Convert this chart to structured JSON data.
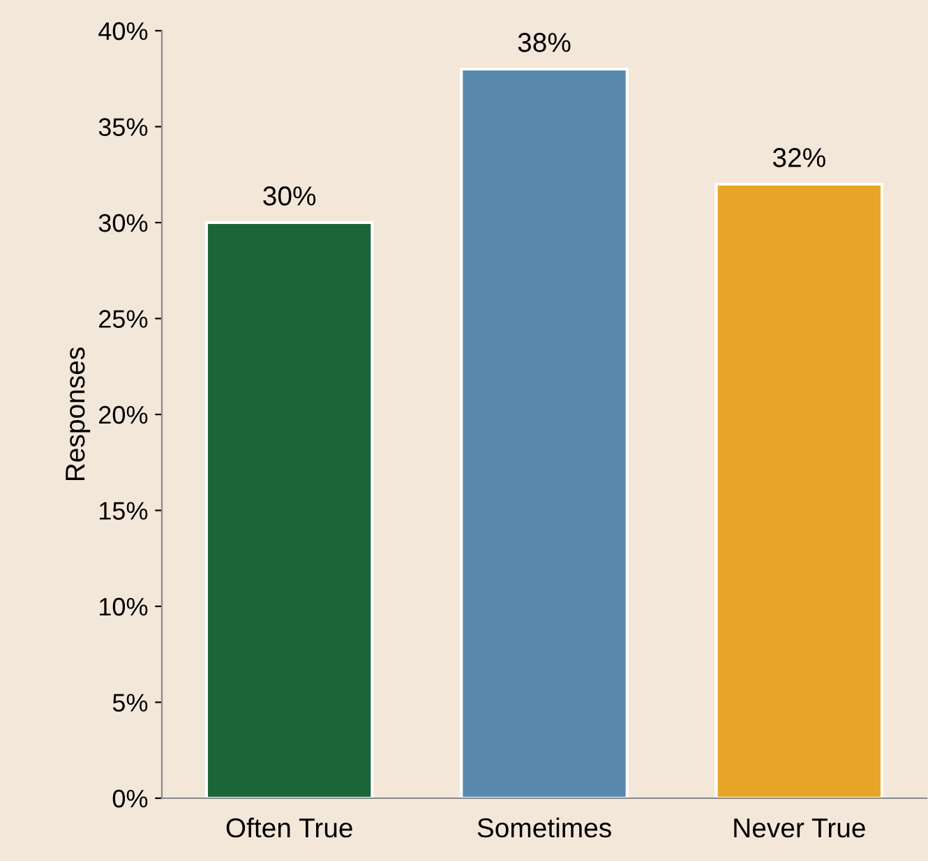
{
  "chart_data": {
    "type": "bar",
    "ylabel": "Responses",
    "categories": [
      "Often True",
      "Sometimes",
      "Never True"
    ],
    "values": [
      30,
      38,
      32
    ],
    "colors": [
      "#1b6639",
      "#5989ae",
      "#e8a628"
    ],
    "value_labels": [
      "30%",
      "38%",
      "32%"
    ],
    "ylim": [
      0,
      40
    ],
    "yticks": [
      {
        "value": 0,
        "label": "0%"
      },
      {
        "value": 5,
        "label": "5%"
      },
      {
        "value": 10,
        "label": "10%"
      },
      {
        "value": 15,
        "label": "15%"
      },
      {
        "value": 20,
        "label": "20%"
      },
      {
        "value": 25,
        "label": "25%"
      },
      {
        "value": 30,
        "label": "30%"
      },
      {
        "value": 35,
        "label": "35%"
      },
      {
        "value": 40,
        "label": "40%"
      }
    ],
    "grid": false,
    "legend": false
  }
}
